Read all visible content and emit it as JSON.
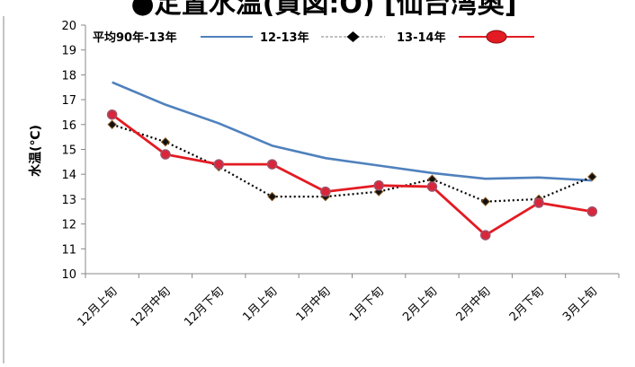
{
  "title": "●定置水温(資図:O) [仙台湾奥]",
  "chart_data": {
    "type": "line",
    "title": "●定置水温(資図:O) [仙台湾奥]",
    "ylabel": "水温(℃)",
    "xlabel": "",
    "ylim": [
      10,
      20
    ],
    "yticks": [
      10,
      11,
      12,
      13,
      14,
      15,
      16,
      17,
      18,
      19,
      20
    ],
    "categories": [
      "12月上旬",
      "12月中旬",
      "12月下旬",
      "1月上旬",
      "1月中旬",
      "1月下旬",
      "2月上旬",
      "2月中旬",
      "2月下旬",
      "3月上旬"
    ],
    "grid": false,
    "legend": "top",
    "series": [
      {
        "name": "平均90年-13年",
        "color": "#4f81bd",
        "style": "solid",
        "values": [
          17.7,
          16.8,
          16.05,
          15.15,
          14.65,
          14.35,
          14.05,
          13.82,
          13.87,
          13.75
        ]
      },
      {
        "name": "12-13年",
        "color": "#000000",
        "style": "dotted",
        "marker": "diamond",
        "values": [
          16.0,
          15.3,
          14.3,
          13.1,
          13.1,
          13.3,
          13.8,
          12.9,
          13.0,
          13.9
        ]
      },
      {
        "name": "13-14年",
        "color": "#e31b23",
        "style": "solid",
        "marker": "circle",
        "values": [
          16.4,
          14.8,
          14.4,
          14.4,
          13.3,
          13.55,
          13.5,
          11.55,
          12.85,
          12.5
        ]
      }
    ]
  }
}
